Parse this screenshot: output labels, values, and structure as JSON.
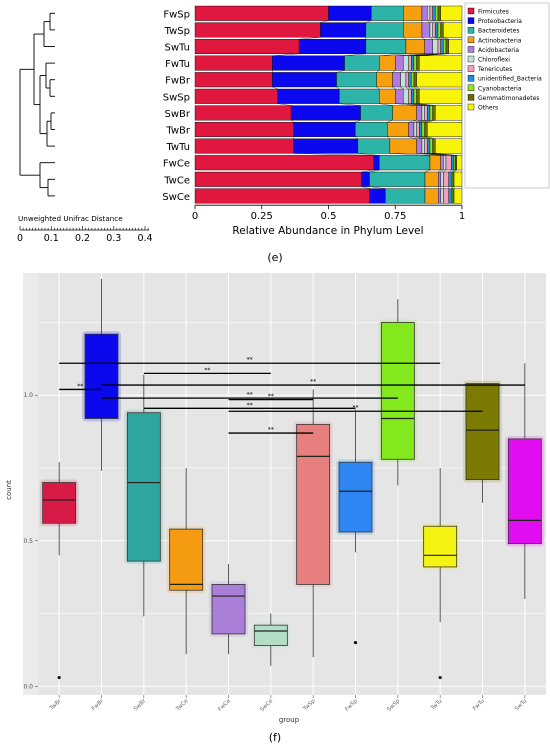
{
  "panel_e_label": "(e)",
  "panel_f_label": "(f)",
  "chart_data": [
    {
      "type": "bar",
      "orientation": "horizontal",
      "stacked": true,
      "categories": [
        "FwSp",
        "TwSp",
        "SwTu",
        "FwTu",
        "FwBr",
        "SwSp",
        "SwBr",
        "TwBr",
        "TwTu",
        "FwCe",
        "TwCe",
        "SwCe"
      ],
      "xlabel": "Relative Abundance in Phylum Level",
      "xlim": [
        0,
        1
      ],
      "xticks": [
        "0",
        "0.25",
        "0.5",
        "0.75",
        "1"
      ],
      "legend_position": "right",
      "series": [
        {
          "name": "Firmicutes",
          "color": "#e0173f",
          "values": [
            0.5,
            0.47,
            0.39,
            0.29,
            0.29,
            0.31,
            0.36,
            0.37,
            0.37,
            0.67,
            0.63,
            0.66
          ]
        },
        {
          "name": "Proteobacteria",
          "color": "#0b08ef",
          "values": [
            0.16,
            0.17,
            0.25,
            0.27,
            0.24,
            0.23,
            0.26,
            0.23,
            0.24,
            0.02,
            0.03,
            0.06
          ]
        },
        {
          "name": "Bacteroidetes",
          "color": "#2cb4a8",
          "values": [
            0.12,
            0.14,
            0.15,
            0.13,
            0.15,
            0.15,
            0.12,
            0.12,
            0.12,
            0.19,
            0.21,
            0.15
          ]
        },
        {
          "name": "Actinobacteria",
          "color": "#f7a00d",
          "values": [
            0.07,
            0.07,
            0.07,
            0.06,
            0.06,
            0.06,
            0.09,
            0.08,
            0.1,
            0.04,
            0.05,
            0.05
          ]
        },
        {
          "name": "Acidobacteria",
          "color": "#b07ae0",
          "values": [
            0.02,
            0.03,
            0.03,
            0.03,
            0.03,
            0.03,
            0.02,
            0.02,
            0.02,
            0.01,
            0.01,
            0.01
          ]
        },
        {
          "name": "Chloroflexi",
          "color": "#bfe3d7",
          "values": [
            0.01,
            0.01,
            0.02,
            0.02,
            0.02,
            0.02,
            0.01,
            0.01,
            0.01,
            0.01,
            0.01,
            0.01
          ]
        },
        {
          "name": "Tenericutes",
          "color": "#f2a0b7",
          "values": [
            0.01,
            0.01,
            0.01,
            0.01,
            0.01,
            0.01,
            0.01,
            0.01,
            0.01,
            0.02,
            0.02,
            0.02
          ]
        },
        {
          "name": "unidentified_Bacteria",
          "color": "#1e8fd8",
          "values": [
            0.01,
            0.01,
            0.01,
            0.01,
            0.01,
            0.01,
            0.01,
            0.01,
            0.01,
            0.01,
            0.01,
            0.01
          ]
        },
        {
          "name": "Cyanobacteria",
          "color": "#8fe81a",
          "values": [
            0.01,
            0.01,
            0.01,
            0.01,
            0.01,
            0.01,
            0.01,
            0.01,
            0.01,
            0.005,
            0.005,
            0.005
          ]
        },
        {
          "name": "Gemmatimonadetes",
          "color": "#6b6b00",
          "values": [
            0.01,
            0.01,
            0.01,
            0.01,
            0.01,
            0.01,
            0.01,
            0.01,
            0.01,
            0.005,
            0.005,
            0.005
          ]
        },
        {
          "name": "Others",
          "color": "#f7f40a",
          "values": [
            0.08,
            0.07,
            0.05,
            0.16,
            0.17,
            0.16,
            0.1,
            0.13,
            0.1,
            0.02,
            0.03,
            0.03
          ]
        }
      ],
      "dendrogram": {
        "scale_label": "Unweighted Unifrac Distance",
        "scale_ticks": [
          "0",
          "0.1",
          "0.2",
          "0.3",
          "0.4"
        ]
      }
    },
    {
      "type": "boxplot",
      "xlabel": "group",
      "ylabel": "count",
      "ylim": [
        -0.03,
        1.42
      ],
      "yticks": [
        "0.0",
        "0.5",
        "1.0"
      ],
      "grid": true,
      "categories": [
        "TwBr",
        "FwBr",
        "SwBr",
        "TwCe",
        "FwCe",
        "SwCe",
        "TwSp",
        "FwSp",
        "SwSp",
        "TwTu",
        "FwTu",
        "SwTu"
      ],
      "boxes": [
        {
          "group": "TwBr",
          "color": "#d81b46",
          "min": 0.45,
          "q1": 0.56,
          "median": 0.64,
          "q3": 0.7,
          "max": 0.77,
          "outliers": [
            0.03
          ]
        },
        {
          "group": "FwBr",
          "color": "#0a09ee",
          "min": 0.74,
          "q1": 0.92,
          "median": 1.11,
          "q3": 1.21,
          "max": 1.4,
          "outliers": []
        },
        {
          "group": "SwBr",
          "color": "#2fa59f",
          "min": 0.24,
          "q1": 0.43,
          "median": 0.7,
          "q3": 0.94,
          "max": 1.07,
          "outliers": []
        },
        {
          "group": "TwCe",
          "color": "#f59b12",
          "min": 0.11,
          "q1": 0.33,
          "median": 0.35,
          "q3": 0.54,
          "max": 0.75,
          "outliers": []
        },
        {
          "group": "FwCe",
          "color": "#a97fd8",
          "min": 0.11,
          "q1": 0.18,
          "median": 0.31,
          "q3": 0.35,
          "max": 0.42,
          "outliers": []
        },
        {
          "group": "SwCe",
          "color": "#b3ddc7",
          "min": 0.07,
          "q1": 0.14,
          "median": 0.19,
          "q3": 0.21,
          "max": 0.25,
          "outliers": []
        },
        {
          "group": "TwSp",
          "color": "#e77f7f",
          "min": 0.1,
          "q1": 0.35,
          "median": 0.79,
          "q3": 0.9,
          "max": 1.02,
          "outliers": []
        },
        {
          "group": "FwSp",
          "color": "#2e86f2",
          "min": 0.46,
          "q1": 0.53,
          "median": 0.67,
          "q3": 0.77,
          "max": 0.95,
          "outliers": [
            0.15
          ]
        },
        {
          "group": "SwSp",
          "color": "#83e91c",
          "min": 0.69,
          "q1": 0.78,
          "median": 0.92,
          "q3": 1.25,
          "max": 1.33,
          "outliers": []
        },
        {
          "group": "TwTu",
          "color": "#f4f313",
          "min": 0.22,
          "q1": 0.41,
          "median": 0.45,
          "q3": 0.55,
          "max": 0.75,
          "outliers": [
            0.03
          ]
        },
        {
          "group": "FwTu",
          "color": "#7a7a05",
          "min": 0.63,
          "q1": 0.71,
          "median": 0.88,
          "q3": 1.04,
          "max": 1.04,
          "outliers": []
        },
        {
          "group": "SwTu",
          "color": "#e10df0",
          "min": 0.3,
          "q1": 0.49,
          "median": 0.57,
          "q3": 0.85,
          "max": 1.11,
          "outliers": []
        }
      ],
      "significance": [
        {
          "from": "TwBr",
          "to": "TwTu",
          "y": 1.11,
          "label": "**"
        },
        {
          "from": "SwBr",
          "to": "SwCe",
          "y": 1.075,
          "label": "**"
        },
        {
          "from": "FwBr",
          "to": "TwBr",
          "y": 1.02,
          "label": "**"
        },
        {
          "from": "FwBr",
          "to": "SwTu",
          "y": 1.035,
          "label": "**"
        },
        {
          "from": "FwBr",
          "to": "SwSp",
          "y": 0.99,
          "label": "**"
        },
        {
          "from": "SwBr",
          "to": "FwSp",
          "y": 0.955,
          "label": "**"
        },
        {
          "from": "FwCe",
          "to": "FwTu",
          "y": 0.945,
          "label": "**"
        },
        {
          "from": "FwCe",
          "to": "TwSp",
          "y": 0.985,
          "label": "**"
        },
        {
          "from": "FwCe",
          "to": "TwSp",
          "y": 0.87,
          "label": "**"
        }
      ]
    }
  ]
}
